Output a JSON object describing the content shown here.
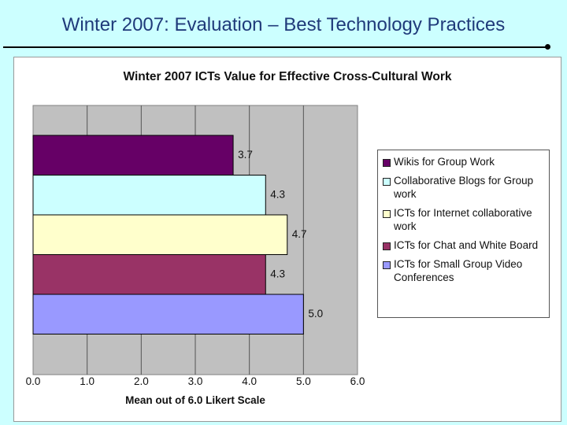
{
  "slide": {
    "title": "Winter 2007: Evaluation – Best Technology Practices"
  },
  "chart_data": {
    "type": "bar",
    "orientation": "horizontal",
    "title": "Winter 2007 ICTs Value for Effective Cross-Cultural Work",
    "xlabel": "Mean out of 6.0 Likert Scale",
    "ylabel": "",
    "xlim": [
      0,
      6
    ],
    "ticks": [
      "0.0",
      "1.0",
      "2.0",
      "3.0",
      "4.0",
      "5.0",
      "6.0"
    ],
    "grid": true,
    "legend_position": "right",
    "categories": [
      "Wikis for Group Work",
      "Collaborative Blogs for Group work",
      "ICTs for Internet collaborative work",
      "ICTs for Chat and White Board",
      "ICTs for Small Group Video Conferences"
    ],
    "values": [
      3.7,
      4.3,
      4.7,
      4.3,
      5.0
    ],
    "value_labels": [
      "3.7",
      "4.3",
      "4.7",
      "4.3",
      "5.0"
    ],
    "colors": [
      "#660066",
      "#ccffff",
      "#ffffcc",
      "#993366",
      "#9999ff"
    ],
    "plot_background": "#c0c0c0"
  }
}
